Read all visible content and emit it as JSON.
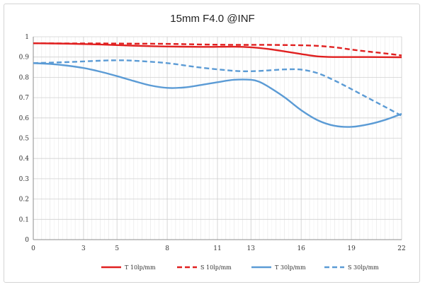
{
  "chart_data": {
    "type": "line",
    "title": "15mm F4.0 @INF",
    "xlabel": "",
    "ylabel": "",
    "xlim": [
      0,
      22
    ],
    "ylim": [
      0,
      1
    ],
    "x_ticks": [
      0,
      3,
      5,
      8,
      11,
      13,
      16,
      19,
      22
    ],
    "y_ticks": [
      0,
      0.1,
      0.2,
      0.3,
      0.4,
      0.5,
      0.6,
      0.7,
      0.8,
      0.9,
      1
    ],
    "y_tick_labels": [
      "0",
      "0.1",
      "0.2",
      "0.3",
      "0.4",
      "0.5",
      "0.6",
      "0.7",
      "0.8",
      "0.9",
      "1"
    ],
    "grid": true,
    "legend_position": "bottom",
    "series": [
      {
        "name": "T 10lp/mm",
        "color": "#e02020",
        "style": "solid",
        "points": [
          [
            0,
            0.968
          ],
          [
            2,
            0.966
          ],
          [
            4,
            0.962
          ],
          [
            6,
            0.956
          ],
          [
            8,
            0.952
          ],
          [
            10,
            0.95
          ],
          [
            12,
            0.951
          ],
          [
            13,
            0.948
          ],
          [
            14,
            0.94
          ],
          [
            15,
            0.928
          ],
          [
            16,
            0.915
          ],
          [
            17,
            0.903
          ],
          [
            18,
            0.9
          ],
          [
            20,
            0.9
          ],
          [
            22,
            0.899
          ]
        ]
      },
      {
        "name": "S 10lp/mm",
        "color": "#e02020",
        "style": "dashed",
        "points": [
          [
            0,
            0.968
          ],
          [
            2,
            0.967
          ],
          [
            4,
            0.967
          ],
          [
            6,
            0.966
          ],
          [
            8,
            0.965
          ],
          [
            10,
            0.962
          ],
          [
            12,
            0.96
          ],
          [
            14,
            0.96
          ],
          [
            16,
            0.958
          ],
          [
            17,
            0.955
          ],
          [
            18,
            0.948
          ],
          [
            19,
            0.937
          ],
          [
            20,
            0.927
          ],
          [
            21,
            0.918
          ],
          [
            22,
            0.908
          ]
        ]
      },
      {
        "name": "T 30lp/mm",
        "color": "#5b9bd5",
        "style": "solid",
        "points": [
          [
            0,
            0.87
          ],
          [
            1,
            0.866
          ],
          [
            2,
            0.858
          ],
          [
            3,
            0.846
          ],
          [
            4,
            0.828
          ],
          [
            5,
            0.806
          ],
          [
            6,
            0.782
          ],
          [
            7,
            0.76
          ],
          [
            8,
            0.748
          ],
          [
            9,
            0.75
          ],
          [
            10,
            0.762
          ],
          [
            11,
            0.776
          ],
          [
            12,
            0.788
          ],
          [
            13,
            0.788
          ],
          [
            13.5,
            0.778
          ],
          [
            14,
            0.756
          ],
          [
            15,
            0.702
          ],
          [
            16,
            0.638
          ],
          [
            17,
            0.588
          ],
          [
            18,
            0.561
          ],
          [
            19,
            0.556
          ],
          [
            20,
            0.568
          ],
          [
            21,
            0.59
          ],
          [
            22,
            0.62
          ]
        ]
      },
      {
        "name": "S 30lp/mm",
        "color": "#5b9bd5",
        "style": "dashed",
        "points": [
          [
            0,
            0.87
          ],
          [
            2,
            0.875
          ],
          [
            4,
            0.882
          ],
          [
            5,
            0.884
          ],
          [
            6,
            0.882
          ],
          [
            8,
            0.87
          ],
          [
            10,
            0.848
          ],
          [
            12,
            0.832
          ],
          [
            13,
            0.83
          ],
          [
            14,
            0.834
          ],
          [
            15,
            0.839
          ],
          [
            16,
            0.838
          ],
          [
            17,
            0.82
          ],
          [
            18,
            0.784
          ],
          [
            19,
            0.742
          ],
          [
            20,
            0.698
          ],
          [
            21,
            0.655
          ],
          [
            22,
            0.61
          ]
        ]
      }
    ]
  }
}
